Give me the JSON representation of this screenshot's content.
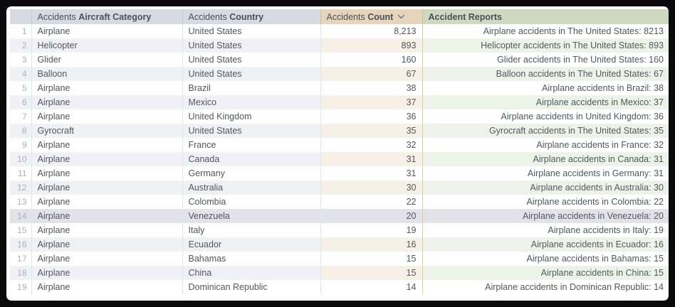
{
  "table": {
    "headers": {
      "row_number": "",
      "category": {
        "prefix": "Accidents",
        "bold": "Aircraft Category"
      },
      "country": {
        "prefix": "Accidents",
        "bold": "Country"
      },
      "count": {
        "prefix": "Accidents",
        "bold": "Count",
        "sort_direction": "descending"
      },
      "reports": {
        "bold": "Accident Reports"
      }
    },
    "rows": [
      {
        "num": "1",
        "category": "Airplane",
        "country": "United States",
        "count": "8,213",
        "report": "Airplane accidents in The United States: 8213",
        "highlighted": false
      },
      {
        "num": "2",
        "category": "Helicopter",
        "country": "United States",
        "count": "893",
        "report": "Helicopter accidents in The United States: 893",
        "highlighted": false
      },
      {
        "num": "3",
        "category": "Glider",
        "country": "United States",
        "count": "160",
        "report": "Glider accidents in The United States: 160",
        "highlighted": false
      },
      {
        "num": "4",
        "category": "Balloon",
        "country": "United States",
        "count": "67",
        "report": "Balloon accidents in The United States: 67",
        "highlighted": false
      },
      {
        "num": "5",
        "category": "Airplane",
        "country": "Brazil",
        "count": "38",
        "report": "Airplane accidents in Brazil: 38",
        "highlighted": false
      },
      {
        "num": "6",
        "category": "Airplane",
        "country": "Mexico",
        "count": "37",
        "report": "Airplane accidents in Mexico: 37",
        "highlighted": false
      },
      {
        "num": "7",
        "category": "Airplane",
        "country": "United Kingdom",
        "count": "36",
        "report": "Airplane accidents in United Kingdom: 36",
        "highlighted": false
      },
      {
        "num": "8",
        "category": "Gyrocraft",
        "country": "United States",
        "count": "35",
        "report": "Gyrocraft accidents in The United States: 35",
        "highlighted": false
      },
      {
        "num": "9",
        "category": "Airplane",
        "country": "France",
        "count": "32",
        "report": "Airplane accidents in France: 32",
        "highlighted": false
      },
      {
        "num": "10",
        "category": "Airplane",
        "country": "Canada",
        "count": "31",
        "report": "Airplane accidents in Canada: 31",
        "highlighted": false
      },
      {
        "num": "11",
        "category": "Airplane",
        "country": "Germany",
        "count": "31",
        "report": "Airplane accidents in Germany: 31",
        "highlighted": false
      },
      {
        "num": "12",
        "category": "Airplane",
        "country": "Australia",
        "count": "30",
        "report": "Airplane accidents in Australia: 30",
        "highlighted": false
      },
      {
        "num": "13",
        "category": "Airplane",
        "country": "Colombia",
        "count": "22",
        "report": "Airplane accidents in Colombia: 22",
        "highlighted": false
      },
      {
        "num": "14",
        "category": "Airplane",
        "country": "Venezuela",
        "count": "20",
        "report": "Airplane accidents in Venezuela: 20",
        "highlighted": true
      },
      {
        "num": "15",
        "category": "Airplane",
        "country": "Italy",
        "count": "19",
        "report": "Airplane accidents in Italy: 19",
        "highlighted": false
      },
      {
        "num": "16",
        "category": "Airplane",
        "country": "Ecuador",
        "count": "16",
        "report": "Airplane accidents in Ecuador: 16",
        "highlighted": false
      },
      {
        "num": "17",
        "category": "Airplane",
        "country": "Bahamas",
        "count": "15",
        "report": "Airplane accidents in Bahamas: 15",
        "highlighted": false
      },
      {
        "num": "18",
        "category": "Airplane",
        "country": "China",
        "count": "15",
        "report": "Airplane accidents in China: 15",
        "highlighted": false
      },
      {
        "num": "19",
        "category": "Airplane",
        "country": "Dominican Republic",
        "count": "14",
        "report": "Airplane accidents in Dominican Republic: 14",
        "highlighted": false
      }
    ]
  },
  "colors": {
    "frame_background": "#0a0a0d",
    "panel_background": "#ffffff",
    "header_blue": "#d4dbe3",
    "header_tan": "#e6d4bb",
    "header_green": "#cdd9c0",
    "stripe_blue": "#eff1f4",
    "stripe_tan": "#f6f0e6",
    "stripe_green": "#eef3e9",
    "highlight_gray": "#e2e3e6",
    "body_text": "#53585d",
    "row_number_text": "#a9b3bd"
  }
}
